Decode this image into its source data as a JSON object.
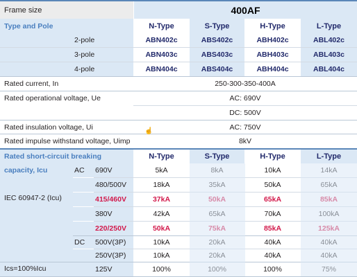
{
  "frame": {
    "label": "Frame size",
    "value": "400AF"
  },
  "types": [
    "N-Type",
    "S-Type",
    "H-Type",
    "L-Type"
  ],
  "type_pole": {
    "label": "Type and Pole",
    "rows": [
      {
        "pole": "2-pole",
        "models": [
          "ABN402c",
          "ABS402c",
          "ABH402c",
          "ABL402c"
        ]
      },
      {
        "pole": "3-pole",
        "models": [
          "ABN403c",
          "ABS403c",
          "ABH403c",
          "ABL403c"
        ]
      },
      {
        "pole": "4-pole",
        "models": [
          "ABN404c",
          "ABS404c",
          "ABH404c",
          "ABL404c"
        ]
      }
    ]
  },
  "ratings": [
    {
      "label": "Rated current, In",
      "value": "250-300-350-400A"
    },
    {
      "label": "Rated operational voltage, Ue",
      "value": "AC: 690V"
    },
    {
      "label": "",
      "value": "DC: 500V"
    },
    {
      "label": "Rated insulation voltage, Ui",
      "value": "AC: 750V"
    },
    {
      "label": "Rated impulse withstand voltage, Uimp",
      "value": "8kV"
    }
  ],
  "breaking": {
    "label_line1": "Rated short-circuit breaking",
    "label_line2": "capacity, Icu",
    "standard": "IEC 60947-2 (Icu)",
    "ics_label": "Ics=100%Icu",
    "rows": [
      {
        "group": "AC",
        "voltage": "690V",
        "values": [
          "5kA",
          "8kA",
          "10kA",
          "14kA"
        ],
        "highlight": false
      },
      {
        "group": "",
        "voltage": "480/500V",
        "values": [
          "18kA",
          "35kA",
          "50kA",
          "65kA"
        ],
        "highlight": false
      },
      {
        "group": "",
        "voltage": "415/460V",
        "values": [
          "37kA",
          "50kA",
          "65kA",
          "85kA"
        ],
        "highlight": true
      },
      {
        "group": "",
        "voltage": "380V",
        "values": [
          "42kA",
          "65kA",
          "70kA",
          "100kA"
        ],
        "highlight": false
      },
      {
        "group": "",
        "voltage": "220/250V",
        "values": [
          "50kA",
          "75kA",
          "85kA",
          "125kA"
        ],
        "highlight": true
      },
      {
        "group": "DC",
        "voltage": "500V(3P)",
        "values": [
          "10kA",
          "20kA",
          "40kA",
          "40kA"
        ],
        "highlight": false
      },
      {
        "group": "",
        "voltage": "250V(3P)",
        "values": [
          "10kA",
          "20kA",
          "40kA",
          "40kA"
        ],
        "highlight": false
      },
      {
        "group": "",
        "voltage": "125V",
        "values": [
          "100%",
          "100%",
          "100%",
          "75%"
        ],
        "highlight": false
      }
    ]
  },
  "colors": {
    "header_blue": "#dbe8f5",
    "grey": "#ececec",
    "type_text": "#222a6b",
    "accent_text": "#4a7fbf",
    "highlight_red": "#d2194b"
  }
}
